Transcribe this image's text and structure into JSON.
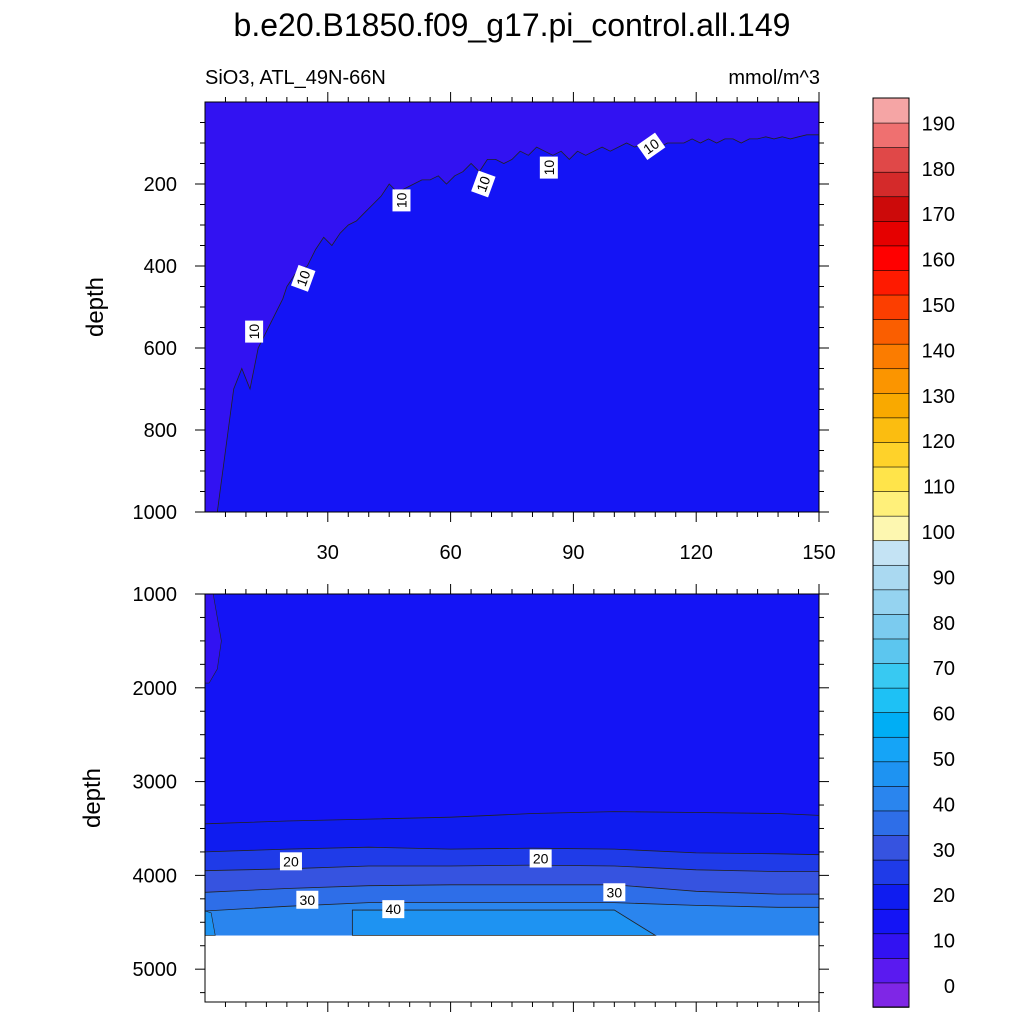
{
  "figure": {
    "title": "b.e20.B1850.f09_g17.pi_control.all.149",
    "left_subtitle": "SiO3, ATL_49N-66N",
    "right_subtitle": "mmol/m^3"
  },
  "colorbar": {
    "labels": [
      "0",
      "10",
      "20",
      "30",
      "40",
      "50",
      "60",
      "70",
      "80",
      "90",
      "100",
      "110",
      "120",
      "130",
      "140",
      "150",
      "160",
      "170",
      "180",
      "190"
    ],
    "colors": [
      "#7f26e6",
      "#5a1af0",
      "#3212f2",
      "#1414f5",
      "#0f1cf0",
      "#1f3be8",
      "#3653e0",
      "#2e6ee8",
      "#2a85ee",
      "#1e93f2",
      "#15a4f7",
      "#00aef5",
      "#1ec1f5",
      "#38c9f2",
      "#5cc6ef",
      "#7bcbef",
      "#95d3f0",
      "#aad9f1",
      "#c4e3f4",
      "#fdf7b0",
      "#fff07a",
      "#ffe44a",
      "#fed22a",
      "#fbbd10",
      "#f9a900",
      "#fb9500",
      "#fb7c00",
      "#fa5e00",
      "#fc3e00",
      "#fe1a00",
      "#ff0000",
      "#e50000",
      "#cc0a0a",
      "#d42a2a",
      "#e04848",
      "#ef7070",
      "#f5a5a5"
    ]
  },
  "chart_data": [
    {
      "type": "heatmap",
      "panel": "upper",
      "variable": "SiO3",
      "units": "mmol/m^3",
      "xlabel": "",
      "ylabel": "depth",
      "xlim": [
        0,
        150
      ],
      "ylim": [
        1000,
        0
      ],
      "xticks": [
        "30",
        "60",
        "90",
        "120",
        "150"
      ],
      "yticks": [
        "200",
        "400",
        "600",
        "800",
        "1000"
      ],
      "contour_labels": [
        "10",
        "10",
        "10",
        "10",
        "10",
        "10",
        "10"
      ],
      "contour_10_depth": {
        "x": [
          3,
          5,
          7,
          9,
          11,
          13,
          15,
          17,
          19,
          20,
          22,
          25,
          27,
          29,
          31,
          33,
          35,
          37,
          39,
          41,
          43,
          45,
          47,
          49,
          51,
          53,
          55,
          57,
          59,
          61,
          63,
          65,
          67,
          69,
          71,
          73,
          75,
          77,
          79,
          81,
          83,
          85,
          87,
          89,
          91,
          93,
          95,
          97,
          99,
          101,
          103,
          105,
          107,
          109,
          111,
          113,
          115,
          117,
          119,
          121,
          123,
          125,
          127,
          129,
          131,
          133,
          135,
          137,
          139,
          141,
          143,
          145,
          147,
          150
        ],
        "y": [
          1000,
          850,
          700,
          650,
          700,
          600,
          560,
          520,
          480,
          450,
          420,
          400,
          360,
          330,
          350,
          320,
          300,
          290,
          270,
          250,
          230,
          200,
          220,
          210,
          200,
          190,
          190,
          180,
          200,
          180,
          170,
          150,
          170,
          140,
          140,
          150,
          140,
          120,
          130,
          110,
          120,
          130,
          120,
          140,
          120,
          130,
          120,
          110,
          120,
          110,
          100,
          110,
          100,
          100,
          110,
          100,
          100,
          100,
          90,
          100,
          90,
          100,
          90,
          90,
          100,
          90,
          90,
          85,
          90,
          85,
          90,
          85,
          80,
          80
        ]
      },
      "fill_above": "<10",
      "fill_below": "10-15"
    },
    {
      "type": "heatmap",
      "panel": "lower",
      "variable": "SiO3",
      "units": "mmol/m^3",
      "xlabel": "",
      "ylabel": "depth",
      "xlim": [
        0,
        150
      ],
      "ylim": [
        5350,
        1000
      ],
      "yticks": [
        "1000",
        "2000",
        "3000",
        "4000",
        "5000"
      ],
      "ocean_bottom_depth": 4640,
      "contour_labels": [
        "20",
        "20",
        "30",
        "30",
        "40"
      ],
      "contours": [
        {
          "level": 15,
          "x": [
            0,
            20,
            40,
            60,
            80,
            100,
            120,
            140,
            150
          ],
          "depth": [
            3450,
            3420,
            3400,
            3380,
            3340,
            3320,
            3330,
            3340,
            3360
          ]
        },
        {
          "level": 20,
          "x": [
            0,
            20,
            40,
            60,
            80,
            100,
            120,
            140,
            150
          ],
          "depth": [
            3750,
            3720,
            3700,
            3720,
            3710,
            3720,
            3760,
            3770,
            3780
          ]
        },
        {
          "level": 25,
          "x": [
            0,
            20,
            40,
            60,
            80,
            100,
            120,
            140,
            150
          ],
          "depth": [
            3950,
            3930,
            3900,
            3900,
            3890,
            3900,
            3940,
            3960,
            3960
          ]
        },
        {
          "level": 30,
          "x": [
            0,
            20,
            40,
            60,
            80,
            100,
            120,
            140,
            150
          ],
          "depth": [
            4180,
            4140,
            4110,
            4100,
            4100,
            4100,
            4170,
            4200,
            4200
          ]
        },
        {
          "level": 35,
          "x": [
            0,
            20,
            40,
            60,
            80,
            100,
            120,
            140,
            150
          ],
          "depth": [
            4380,
            4330,
            4290,
            4290,
            4290,
            4290,
            4320,
            4340,
            4340
          ]
        }
      ],
      "inner_40_region": {
        "x": [
          36,
          110
        ],
        "top_depth": 4370
      }
    }
  ]
}
